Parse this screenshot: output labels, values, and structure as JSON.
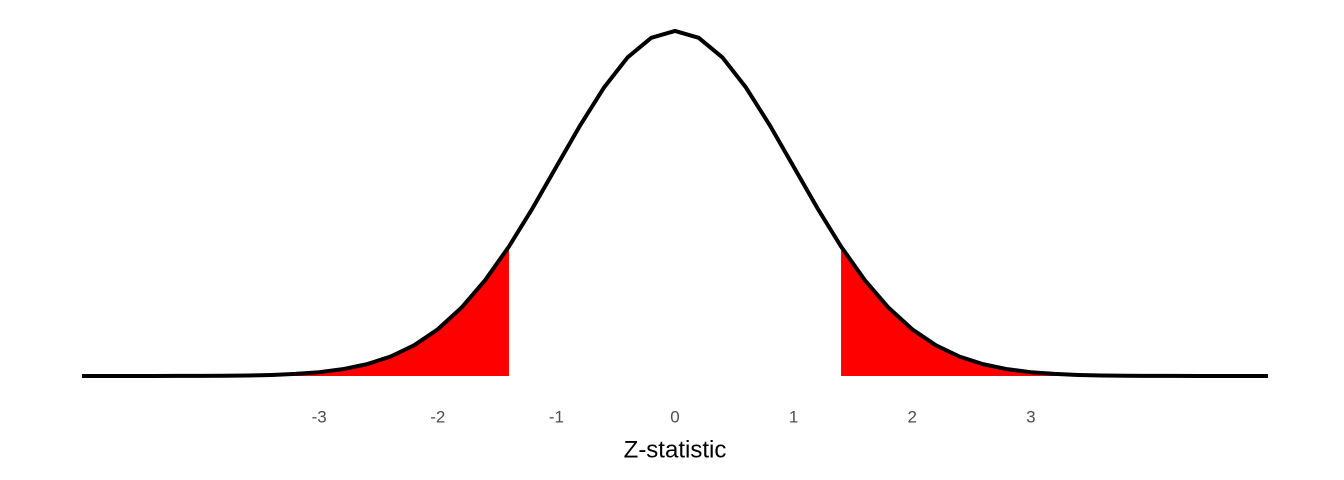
{
  "chart_data": {
    "type": "line",
    "x_label": "Z-statistic",
    "x": [
      -5,
      -4.8,
      -4.6,
      -4.4,
      -4.2,
      -4,
      -3.8,
      -3.6,
      -3.4,
      -3.2,
      -3,
      -2.8,
      -2.6,
      -2.4,
      -2.2,
      -2,
      -1.8,
      -1.6,
      -1.4,
      -1.2,
      -1,
      -0.8,
      -0.6,
      -0.4,
      -0.2,
      0,
      0.2,
      0.4,
      0.6,
      0.8,
      1,
      1.2,
      1.4,
      1.6,
      1.8,
      2,
      2.2,
      2.4,
      2.6,
      2.8,
      3,
      3.2,
      3.4,
      3.6,
      3.8,
      4,
      4.2,
      4.4,
      4.6,
      4.8,
      5
    ],
    "series": [
      {
        "color": "#000000",
        "values": [
          0,
          0,
          0,
          0,
          0.0001,
          0.0001,
          0.0003,
          0.0006,
          0.0012,
          0.0024,
          0.0044,
          0.0079,
          0.0136,
          0.0224,
          0.0355,
          0.054,
          0.079,
          0.1109,
          0.1497,
          0.1942,
          0.242,
          0.2897,
          0.3332,
          0.3683,
          0.391,
          0.3989,
          0.391,
          0.3683,
          0.3332,
          0.2897,
          0.242,
          0.1942,
          0.1497,
          0.1109,
          0.079,
          0.054,
          0.0355,
          0.0224,
          0.0136,
          0.0079,
          0.0044,
          0.0024,
          0.0012,
          0.0006,
          0.0003,
          0.0001,
          0.0001,
          0,
          0,
          0,
          0
        ]
      }
    ],
    "shade_below": -1.4,
    "shade_above": 1.4,
    "shade_color": "#ff0000",
    "xlim": [
      -5,
      5
    ],
    "ylim": [
      0,
      0.4
    ],
    "xticks": [
      -3,
      -2,
      -1,
      0,
      1,
      2,
      3
    ],
    "grid": false
  }
}
